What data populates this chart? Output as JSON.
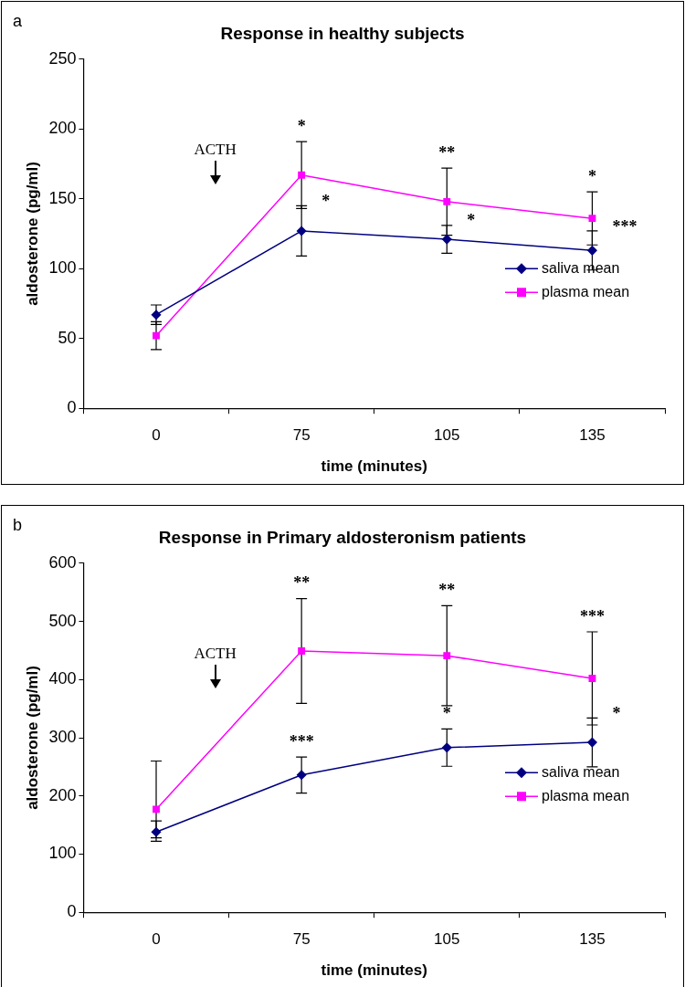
{
  "chart_data": [
    {
      "type": "line",
      "title": "Response in healthy subjects",
      "xlabel": "time (minutes)",
      "ylabel": "aldosterone (pg/ml)",
      "categories": [
        "0",
        "75",
        "105",
        "135"
      ],
      "series": [
        {
          "name": "saliva mean",
          "color": "#000080",
          "marker": "diamond",
          "values": [
            67,
            127,
            121,
            113
          ],
          "errors": [
            7,
            18,
            10,
            14
          ]
        },
        {
          "name": "plasma mean",
          "color": "#ff00ff",
          "marker": "square",
          "values": [
            52,
            167,
            148,
            136
          ],
          "errors": [
            10,
            24,
            24,
            19
          ]
        }
      ],
      "ylim": [
        0,
        250
      ],
      "yticks": [
        0,
        50,
        100,
        150,
        200,
        250
      ],
      "grid": false,
      "legend": "right",
      "annotations": [
        "a",
        "ACTH",
        {
          "text": "*",
          "x": "75",
          "y": 191
        },
        {
          "text": "*",
          "x": "75",
          "y": 145
        },
        {
          "text": "**",
          "x": "105",
          "y": 172
        },
        {
          "text": "*",
          "x": "105",
          "y": 131
        },
        {
          "text": "*",
          "x": "135",
          "y": 155
        },
        {
          "text": "***",
          "x": "135",
          "y": 127
        }
      ]
    },
    {
      "type": "line",
      "title": "Response in Primary aldosteronism patients",
      "xlabel": "time (minutes)",
      "ylabel": "aldosterone (pg/ml)",
      "categories": [
        "0",
        "75",
        "105",
        "135"
      ],
      "series": [
        {
          "name": "saliva mean",
          "color": "#000080",
          "marker": "diamond",
          "values": [
            138,
            236,
            283,
            292
          ],
          "errors": [
            [
              128,
              157
            ],
            31,
            32,
            42
          ]
        },
        {
          "name": "plasma mean",
          "color": "#ff00ff",
          "marker": "square",
          "values": [
            177,
            449,
            441,
            402
          ],
          "errors": [
            [
              122,
              260
            ],
            90,
            86,
            80
          ]
        }
      ],
      "ylim": [
        0,
        600
      ],
      "yticks": [
        0,
        100,
        200,
        300,
        400,
        500,
        600
      ],
      "grid": false,
      "legend": "right",
      "annotations": [
        "b",
        "ACTH",
        {
          "text": "**",
          "x": "75",
          "y": 539
        },
        {
          "text": "***",
          "x": "75",
          "y": 267
        },
        {
          "text": "**",
          "x": "105",
          "y": 527
        },
        {
          "text": "*",
          "x": "105",
          "y": 315
        },
        {
          "text": "***",
          "x": "135",
          "y": 482
        },
        {
          "text": "*",
          "x": "135",
          "y": 334
        }
      ]
    }
  ]
}
